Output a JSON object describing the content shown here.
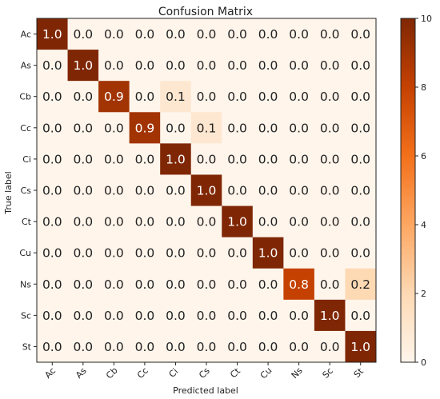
{
  "chart_data": {
    "type": "heatmap",
    "title": "Confusion Matrix",
    "xlabel": "Predicted label",
    "ylabel": "True label",
    "x_categories": [
      "Ac",
      "As",
      "Cb",
      "Cc",
      "Ci",
      "Cs",
      "Ct",
      "Cu",
      "Ns",
      "Sc",
      "St"
    ],
    "y_categories": [
      "Ac",
      "As",
      "Cb",
      "Cc",
      "Ci",
      "Cs",
      "Ct",
      "Cu",
      "Ns",
      "Sc",
      "St"
    ],
    "values": [
      [
        1.0,
        0.0,
        0.0,
        0.0,
        0.0,
        0.0,
        0.0,
        0.0,
        0.0,
        0.0,
        0.0
      ],
      [
        0.0,
        1.0,
        0.0,
        0.0,
        0.0,
        0.0,
        0.0,
        0.0,
        0.0,
        0.0,
        0.0
      ],
      [
        0.0,
        0.0,
        0.9,
        0.0,
        0.1,
        0.0,
        0.0,
        0.0,
        0.0,
        0.0,
        0.0
      ],
      [
        0.0,
        0.0,
        0.0,
        0.9,
        0.0,
        0.1,
        0.0,
        0.0,
        0.0,
        0.0,
        0.0
      ],
      [
        0.0,
        0.0,
        0.0,
        0.0,
        1.0,
        0.0,
        0.0,
        0.0,
        0.0,
        0.0,
        0.0
      ],
      [
        0.0,
        0.0,
        0.0,
        0.0,
        0.0,
        1.0,
        0.0,
        0.0,
        0.0,
        0.0,
        0.0
      ],
      [
        0.0,
        0.0,
        0.0,
        0.0,
        0.0,
        0.0,
        1.0,
        0.0,
        0.0,
        0.0,
        0.0
      ],
      [
        0.0,
        0.0,
        0.0,
        0.0,
        0.0,
        0.0,
        0.0,
        1.0,
        0.0,
        0.0,
        0.0
      ],
      [
        0.0,
        0.0,
        0.0,
        0.0,
        0.0,
        0.0,
        0.0,
        0.0,
        0.8,
        0.0,
        0.2
      ],
      [
        0.0,
        0.0,
        0.0,
        0.0,
        0.0,
        0.0,
        0.0,
        0.0,
        0.0,
        1.0,
        0.0
      ],
      [
        0.0,
        0.0,
        0.0,
        0.0,
        0.0,
        0.0,
        0.0,
        0.0,
        0.0,
        0.0,
        1.0
      ]
    ],
    "colorbar": {
      "range": [
        0,
        10
      ],
      "ticks": [
        0,
        2,
        4,
        6,
        8,
        10
      ],
      "colormap": "Oranges-Reds",
      "low_color": "#fff5eb",
      "high_color": "#7f2704"
    },
    "grid": false
  }
}
